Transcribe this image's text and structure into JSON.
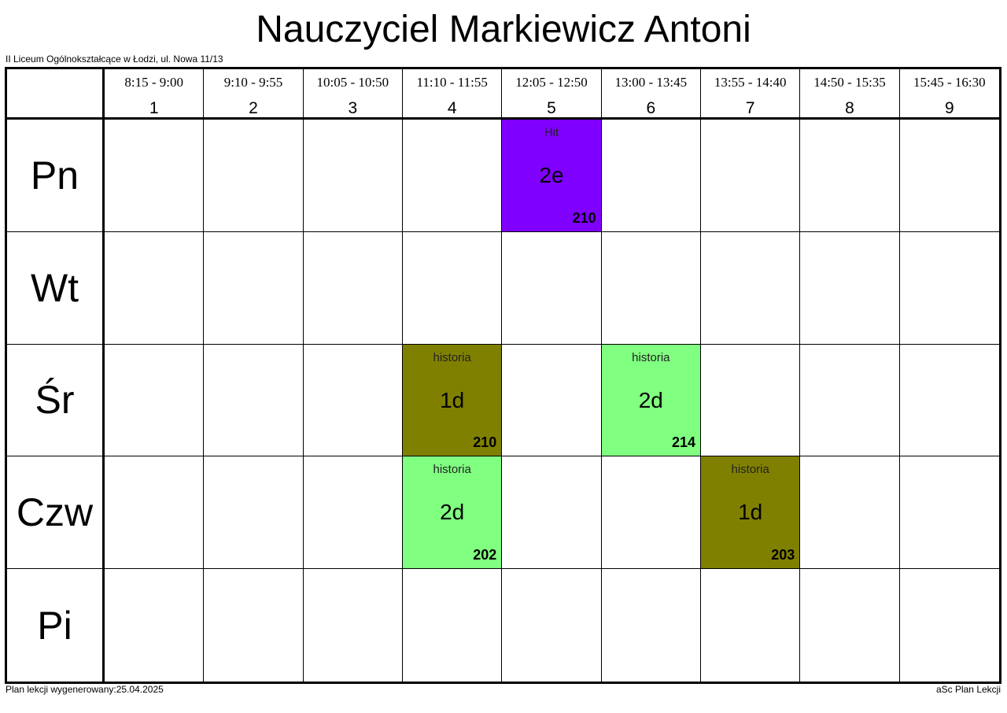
{
  "header": {
    "title": "Nauczyciel Markiewicz Antoni",
    "school": "II Liceum Ogólnokształcące w Łodzi, ul. Nowa 11/13"
  },
  "periods": [
    {
      "time": "8:15 - 9:00",
      "number": "1"
    },
    {
      "time": "9:10 - 9:55",
      "number": "2"
    },
    {
      "time": "10:05 - 10:50",
      "number": "3"
    },
    {
      "time": "11:10 - 11:55",
      "number": "4"
    },
    {
      "time": "12:05 - 12:50",
      "number": "5"
    },
    {
      "time": "13:00 - 13:45",
      "number": "6"
    },
    {
      "time": "13:55 - 14:40",
      "number": "7"
    },
    {
      "time": "14:50 - 15:35",
      "number": "8"
    },
    {
      "time": "15:45 - 16:30",
      "number": "9"
    }
  ],
  "rows": [
    {
      "day": "Pn",
      "cells": [
        null,
        null,
        null,
        null,
        {
          "subject": "Hit",
          "class": "2e",
          "room": "210",
          "color": "#8000ff"
        },
        null,
        null,
        null,
        null
      ]
    },
    {
      "day": "Wt",
      "cells": [
        null,
        null,
        null,
        null,
        null,
        null,
        null,
        null,
        null
      ]
    },
    {
      "day": "Śr",
      "cells": [
        null,
        null,
        null,
        {
          "subject": "historia",
          "class": "1d",
          "room": "210",
          "color": "#808000"
        },
        null,
        {
          "subject": "historia",
          "class": "2d",
          "room": "214",
          "color": "#80ff80"
        },
        null,
        null,
        null
      ]
    },
    {
      "day": "Czw",
      "cells": [
        null,
        null,
        null,
        {
          "subject": "historia",
          "class": "2d",
          "room": "202",
          "color": "#80ff80"
        },
        null,
        null,
        {
          "subject": "historia",
          "class": "1d",
          "room": "203",
          "color": "#808000"
        },
        null,
        null
      ]
    },
    {
      "day": "Pi",
      "cells": [
        null,
        null,
        null,
        null,
        null,
        null,
        null,
        null,
        null
      ]
    }
  ],
  "footer": {
    "generated": "Plan lekcji wygenerowany:25.04.2025",
    "software": "aSc Plan Lekcji"
  }
}
